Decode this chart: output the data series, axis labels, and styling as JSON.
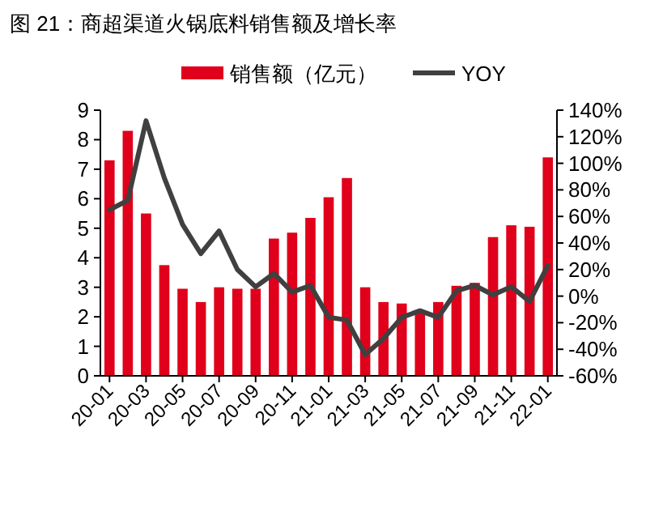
{
  "chart_data": {
    "type": "bar",
    "title": "图 21：商超渠道火锅底料销售额及增长率",
    "categories": [
      "20-01",
      null,
      "20-03",
      null,
      "20-05",
      null,
      "20-07",
      null,
      "20-09",
      null,
      "20-11",
      null,
      "21-01",
      null,
      "21-03",
      null,
      "21-05",
      null,
      "21-07",
      null,
      "21-09",
      null,
      "21-11",
      null,
      "22-01"
    ],
    "series": [
      {
        "name": "销售额（亿元）",
        "color": "#e0001b",
        "values": [
          7.3,
          8.3,
          5.5,
          3.75,
          2.95,
          2.5,
          3.0,
          2.95,
          2.95,
          4.65,
          4.85,
          5.35,
          6.05,
          6.7,
          3.0,
          2.5,
          2.45,
          2.2,
          2.5,
          3.05,
          3.15,
          4.7,
          5.1,
          5.05,
          7.4
        ]
      },
      {
        "name": "YOY",
        "type": "line",
        "axis": "y2",
        "color": "#404040",
        "values": [
          65,
          72,
          132,
          89,
          54,
          32,
          49,
          20,
          7,
          17,
          3,
          8,
          -16,
          -18,
          -44,
          -32,
          -16,
          -11,
          -16,
          4,
          8,
          1,
          7,
          -4,
          23
        ]
      }
    ],
    "ylim": [
      0,
      9
    ],
    "yticks": [
      0,
      1,
      2,
      3,
      4,
      5,
      6,
      7,
      8,
      9
    ],
    "y2lim": [
      -60,
      140
    ],
    "y2ticks": [
      {
        "value": -60,
        "label": "-60%"
      },
      {
        "value": -40,
        "label": "-40%"
      },
      {
        "value": -20,
        "label": "-20%"
      },
      {
        "value": 0,
        "label": "0%"
      },
      {
        "value": 20,
        "label": "20%"
      },
      {
        "value": 40,
        "label": "40%"
      },
      {
        "value": 60,
        "label": "60%"
      },
      {
        "value": 80,
        "label": "80%"
      },
      {
        "value": 100,
        "label": "100%"
      },
      {
        "value": 120,
        "label": "120%"
      },
      {
        "value": 140,
        "label": "140%"
      }
    ],
    "legend": "top",
    "grid": false
  }
}
